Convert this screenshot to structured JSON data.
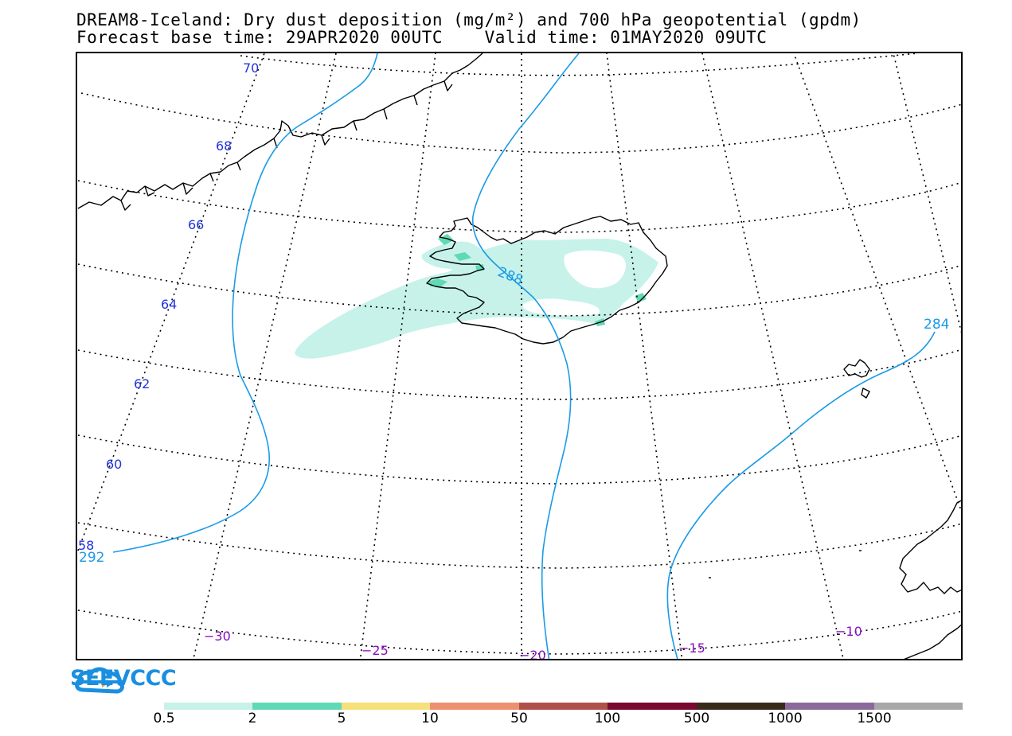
{
  "title": {
    "line1": "DREAM8-Iceland: Dry dust deposition (mg/m²) and 700 hPa geopotential (gpdm)",
    "line2": "Forecast base time: 29APR2020 00UTC    Valid time: 01MAY2020 09UTC"
  },
  "map": {
    "latitude_labels": [
      "70",
      "68",
      "66",
      "64",
      "62",
      "60",
      "58"
    ],
    "longitude_labels": [
      "−30",
      "−25",
      "−20",
      "−15",
      "−10"
    ],
    "geopotential_contours": [
      {
        "label": "292"
      },
      {
        "label": "288"
      },
      {
        "label": "284"
      }
    ],
    "colors": {
      "coastline": "#000000",
      "geopotential_contour": "#1a9be6",
      "dust_light": "#c6f2ea",
      "dust_medium": "#5fd9b6",
      "latitude_label": "#2233dd",
      "longitude_label": "#8811bb"
    }
  },
  "logo": {
    "text": "SEEVCCC",
    "icon": "cloud-arrow-icon",
    "color": "#1a8fe0"
  },
  "colorbar": {
    "labels": [
      "0.5",
      "2",
      "5",
      "10",
      "50",
      "100",
      "500",
      "1000",
      "1500"
    ],
    "colors": [
      "#c6f2ea",
      "#5fd9b6",
      "#f5e07a",
      "#ee9070",
      "#b0504a",
      "#7a0a30",
      "#3a2a1a",
      "#8a6a9a",
      "#a8a8a8"
    ]
  }
}
